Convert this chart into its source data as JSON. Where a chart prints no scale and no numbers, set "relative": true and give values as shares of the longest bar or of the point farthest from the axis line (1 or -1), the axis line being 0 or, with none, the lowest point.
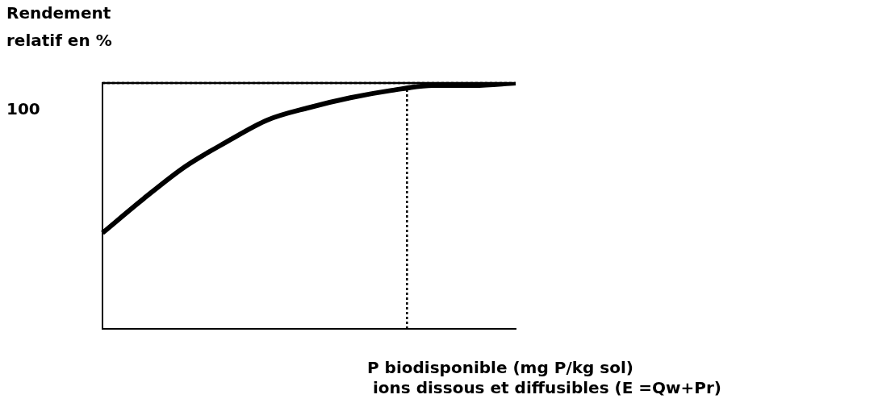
{
  "chart_data": {
    "type": "line",
    "relative": true,
    "ylabel": "Rendement\nrelatif en %",
    "xlabel": "P biodisponible (mg P/kg sol)\n ions dissous et diffusibles (E =Qw+Pr)",
    "categories": [
      null,
      null,
      null,
      null,
      null,
      null,
      null,
      null,
      null,
      null,
      null
    ],
    "series": [
      {
        "color": "#000000",
        "values": [
          0.39,
          0.53,
          0.66,
          0.76,
          0.85,
          0.9,
          0.94,
          0.97,
          0.99,
          0.99,
          1.0
        ]
      }
    ],
    "ref_lines": [
      {
        "axis": "y",
        "value": 1,
        "label": "100",
        "color": "#000000",
        "line_style": "dotted"
      }
    ],
    "grid": false,
    "legend": false,
    "marker": "none",
    "line_style": "solid"
  }
}
